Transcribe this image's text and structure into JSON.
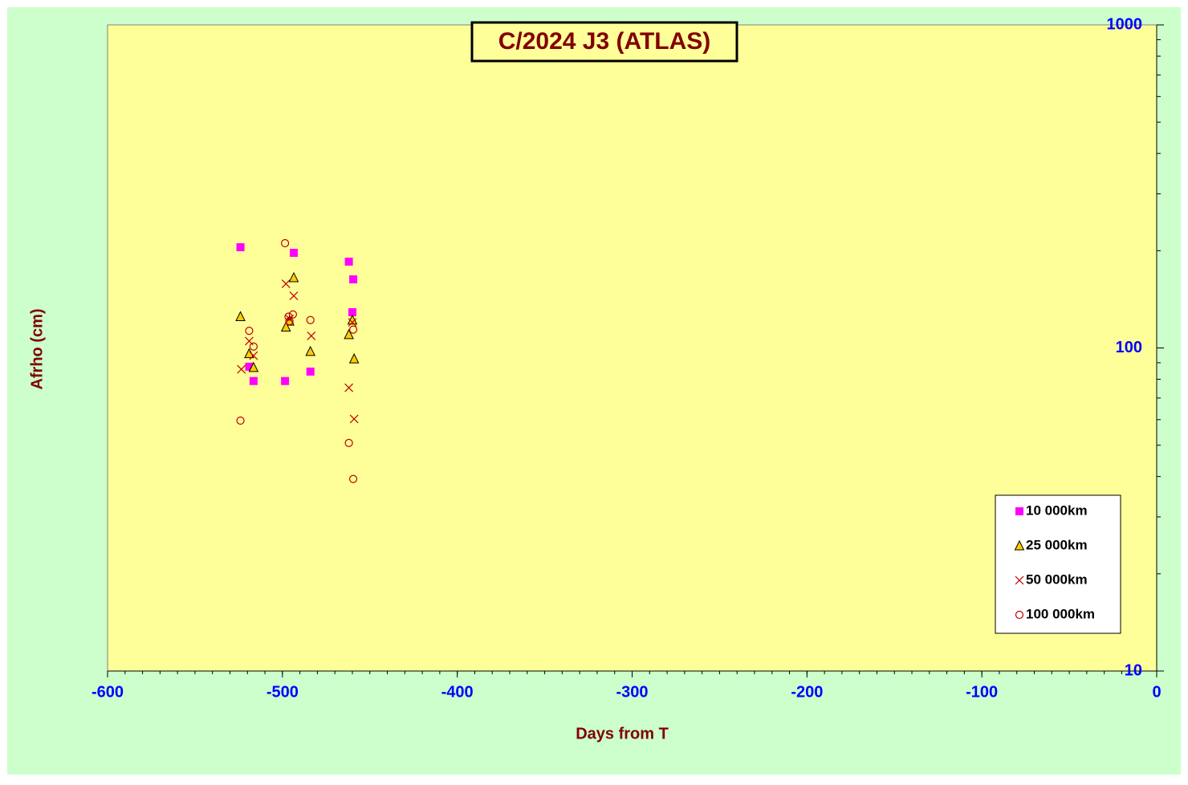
{
  "chart_data": {
    "type": "scatter",
    "title": "C/2024 J3 (ATLAS)",
    "x_label": "Days from T",
    "y_label": "Afrho (cm)",
    "xlim": [
      -600,
      0
    ],
    "xticks": [
      -600,
      -500,
      -400,
      -300,
      -200,
      -100,
      0
    ],
    "ylim": [
      10,
      1000
    ],
    "yticks": [
      10,
      100,
      1000
    ],
    "y_scale": "log",
    "legend": "lower right",
    "series": [
      {
        "name": "10 000km",
        "color": "#ff00ff",
        "marker": "square",
        "x": [
          -524,
          -493.5,
          -462,
          -459.5,
          -460,
          -519,
          -516.5,
          -498.5,
          -484
        ],
        "values": [
          205,
          197,
          185,
          163,
          129,
          87.5,
          79,
          79,
          84.5
        ]
      },
      {
        "name": "25 000km",
        "color": "#ffcc00",
        "marker": "triangle",
        "x": [
          -524,
          -493.5,
          -496,
          -498,
          -460,
          -462,
          -519,
          -516.5,
          -484,
          -459
        ],
        "values": [
          125,
          165,
          121,
          116,
          122,
          110,
          96,
          87,
          97.5,
          92.5
        ]
      },
      {
        "name": "50 000km",
        "color": "#c00000",
        "marker": "cross",
        "x": [
          -498,
          -493.5,
          -496,
          -483.5,
          -460,
          -519,
          -516.5,
          -523.5,
          -462,
          -459
        ],
        "values": [
          158,
          145,
          123,
          109,
          120,
          105,
          94.7,
          85.9,
          75.3,
          60.3
        ]
      },
      {
        "name": "100 000km",
        "color": "#c00000",
        "marker": "circle",
        "x": [
          -498.5,
          -494,
          -496.5,
          -496,
          -484,
          -459.5,
          -519,
          -516.5,
          -524,
          -462,
          -459.5
        ],
        "values": [
          211,
          127,
          125,
          121,
          122,
          114,
          113,
          101,
          59.6,
          50.8,
          39.3
        ]
      }
    ]
  }
}
